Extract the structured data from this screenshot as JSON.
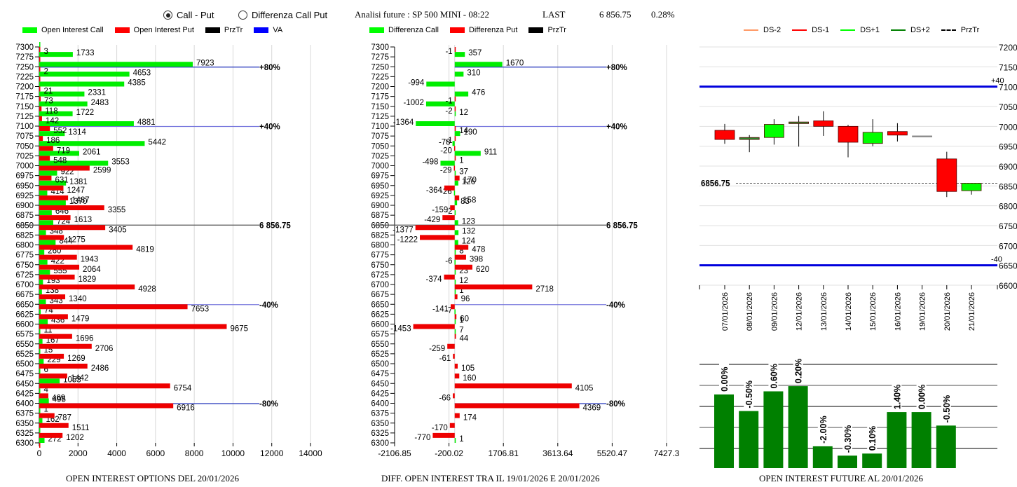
{
  "header": {
    "radio_options": [
      {
        "label": "Call - Put",
        "selected": true
      },
      {
        "label": "Differenza Call Put",
        "selected": false
      }
    ],
    "title": "Analisi future : SP 500 MINI - 08:22",
    "last_label": "LAST",
    "last_value": "6 856.75",
    "change": "0.28%"
  },
  "colors": {
    "call": "#00ff00",
    "put": "#ff0000",
    "przTr": "#000000",
    "va": "#0000ff",
    "ds_minus2": "#ff9966",
    "ds_minus1": "#ff0000",
    "ds_plus1": "#00ff00",
    "ds_plus2": "#008000",
    "future_bar": "#008000"
  },
  "chart_data": [
    {
      "type": "bar",
      "orientation": "horizontal",
      "title": "OPEN INTEREST OPTIONS DEL 20/01/2026",
      "legend": [
        "Open Interest Call",
        "Open Interest Put",
        "PrzTr",
        "VA"
      ],
      "legend_position": "top",
      "categories": [
        7300,
        7275,
        7250,
        7225,
        7200,
        7175,
        7150,
        7125,
        7100,
        7075,
        7050,
        7025,
        7000,
        6975,
        6950,
        6925,
        6900,
        6875,
        6850,
        6825,
        6800,
        6775,
        6750,
        6725,
        6700,
        6675,
        6650,
        6625,
        6600,
        6575,
        6550,
        6525,
        6500,
        6475,
        6450,
        6425,
        6400,
        6375,
        6350,
        6325,
        6300
      ],
      "series": [
        {
          "name": "Open Interest Call",
          "values": [
            0,
            1733,
            7923,
            4653,
            4385,
            2331,
            2483,
            1722,
            4881,
            1314,
            5442,
            2061,
            3553,
            922,
            1381,
            414,
            1370,
            646,
            724,
            348,
            844,
            260,
            422,
            555,
            193,
            138,
            343,
            74,
            436,
            11,
            167,
            15,
            229,
            6,
            1053,
            4,
            495,
            1,
            162,
            0,
            272
          ]
        },
        {
          "name": "Open Interest Put",
          "values": [
            3,
            0,
            2,
            0,
            21,
            73,
            118,
            142,
            552,
            186,
            719,
            548,
            2599,
            631,
            1247,
            1487,
            3355,
            1613,
            3405,
            1275,
            4819,
            1943,
            2064,
            1829,
            4928,
            1340,
            7653,
            1479,
            9675,
            1696,
            2706,
            1269,
            2486,
            1442,
            6754,
            469,
            6916,
            787,
            1511,
            1202,
            0
          ]
        }
      ],
      "xlim": [
        0,
        14000
      ],
      "xticks": [
        "0",
        "2000",
        "4000",
        "6000",
        "8000",
        "10000",
        "12000",
        "14000"
      ],
      "grid": true,
      "reference_lines": [
        {
          "strike": 7250,
          "label": "+80%",
          "type": "VA"
        },
        {
          "strike": 7100,
          "label": "+40%",
          "type": "VA"
        },
        {
          "strike": 6850,
          "label": "6 856.75",
          "type": "PrzTr"
        },
        {
          "strike": 6650,
          "label": "-40%",
          "type": "VA"
        },
        {
          "strike": 6400,
          "label": "-80%",
          "type": "VA"
        }
      ]
    },
    {
      "type": "bar",
      "orientation": "horizontal",
      "title": "DIFF. OPEN INTEREST TRA IL 19/01/2026 E 20/01/2026",
      "legend": [
        "Differenza Call",
        "Differenza Put",
        "PrzTr"
      ],
      "legend_position": "top",
      "categories": [
        7300,
        7275,
        7250,
        7225,
        7200,
        7175,
        7150,
        7125,
        7100,
        7075,
        7050,
        7025,
        7000,
        6975,
        6950,
        6925,
        6900,
        6875,
        6850,
        6825,
        6800,
        6775,
        6750,
        6725,
        6700,
        6675,
        6650,
        6625,
        6600,
        6575,
        6550,
        6525,
        6500,
        6475,
        6450,
        6425,
        6400,
        6375,
        6350,
        6325,
        6300
      ],
      "series": [
        {
          "name": "Differenza Call",
          "values": [
            null,
            357,
            1670,
            310,
            -994,
            476,
            -1002,
            12,
            -1364,
            190,
            -78,
            911,
            -498,
            37,
            126,
            -26,
            83,
            -2,
            123,
            132,
            124,
            8,
            -6,
            23,
            12,
            1,
            null,
            -7,
            1,
            7,
            null,
            null,
            null,
            null,
            null,
            null,
            null,
            null,
            null,
            null,
            1
          ]
        },
        {
          "name": "Differenza Put",
          "values": [
            -1,
            null,
            null,
            null,
            null,
            -1,
            -2,
            null,
            14,
            -1,
            -20,
            1,
            -29,
            170,
            -364,
            158,
            -159,
            -429,
            -1377,
            -1222,
            478,
            398,
            620,
            -374,
            2718,
            96,
            -141,
            60,
            -1453,
            44,
            -259,
            -61,
            105,
            160,
            4105,
            -66,
            4369,
            174,
            -170,
            -770,
            null
          ]
        }
      ],
      "xlim": [
        -2106.85,
        7427.3
      ],
      "xticks": [
        "-2106.85",
        "-200.02",
        "1706.81",
        "3613.64",
        "5520.47",
        "7427.3"
      ],
      "grid": true,
      "reference_lines": [
        {
          "strike": 7250,
          "label": "+80%",
          "type": "VA"
        },
        {
          "strike": 7100,
          "label": "+40%",
          "type": "VA"
        },
        {
          "strike": 6850,
          "label": "6 856.75",
          "type": "PrzTr"
        },
        {
          "strike": 6650,
          "label": "-40%",
          "type": "VA"
        },
        {
          "strike": 6400,
          "label": "-80%",
          "type": "VA"
        }
      ]
    },
    {
      "type": "candlestick",
      "legend": [
        "DS-2",
        "DS-1",
        "DS+1",
        "DS+2",
        "PrzTr"
      ],
      "legend_position": "top",
      "categories": [
        "07/01/2026",
        "08/01/2026",
        "09/01/2026",
        "12/01/2026",
        "13/01/2026",
        "14/01/2026",
        "15/01/2026",
        "16/01/2026",
        "19/01/2026",
        "20/01/2026",
        "21/01/2026"
      ],
      "candles": [
        {
          "open": 6990,
          "close": 6967,
          "high": 7006,
          "low": 6956,
          "color": "red"
        },
        {
          "open": 6967,
          "close": 6972,
          "high": 6978,
          "low": 6935,
          "color": "darkgreen"
        },
        {
          "open": 6972,
          "close": 7005,
          "high": 7018,
          "low": 6954,
          "color": "green"
        },
        {
          "open": 7007,
          "close": 7011,
          "high": 7026,
          "low": 6949,
          "color": "darkgreen"
        },
        {
          "open": 7014,
          "close": 7000,
          "high": 7038,
          "low": 6976,
          "color": "red"
        },
        {
          "open": 7000,
          "close": 6960,
          "high": 7004,
          "low": 6922,
          "color": "red"
        },
        {
          "open": 6957,
          "close": 6985,
          "high": 7018,
          "low": 6950,
          "color": "green"
        },
        {
          "open": 6987,
          "close": 6978,
          "high": 7008,
          "low": 6962,
          "color": "red"
        },
        {
          "open": 6976,
          "close": 6976,
          "high": 6976,
          "low": 6976,
          "color": "gray"
        },
        {
          "open": 6918,
          "close": 6836,
          "high": 6936,
          "low": 6822,
          "color": "red"
        },
        {
          "open": 6838,
          "close": 6856.75,
          "high": 6856.75,
          "low": 6828,
          "color": "green"
        }
      ],
      "ylim": [
        6600,
        7200
      ],
      "yticks": [
        "7200",
        "7150",
        "7100",
        "7050",
        "7000",
        "6950",
        "6900",
        "6850",
        "6800",
        "6750",
        "6700",
        "6650",
        "6600"
      ],
      "reference_lines": [
        {
          "value": 7100,
          "label": "+40",
          "type": "band"
        },
        {
          "value": 6650,
          "label": "-40",
          "type": "band"
        },
        {
          "value": 6856.75,
          "label": "6856.75",
          "type": "PrzTr"
        }
      ],
      "grid": true
    },
    {
      "type": "bar",
      "title": "OPEN INTEREST FUTURE AL 20/01/2026",
      "categories": [
        "07/01/2026",
        "08/01/2026",
        "09/01/2026",
        "12/01/2026",
        "13/01/2026",
        "14/01/2026",
        "15/01/2026",
        "16/01/2026",
        "19/01/2026",
        "20/01/2026"
      ],
      "values": [
        0.71,
        0.55,
        0.74,
        0.79,
        0.21,
        0.12,
        0.14,
        0.54,
        0.54,
        0.41
      ],
      "value_note": "relative bar heights (open interest, fraction of chart height)",
      "data_labels": [
        "0.00%",
        "-0.50%",
        "0.60%",
        "0.20%",
        "-2.00%",
        "-0.30%",
        "0.10%",
        "1.40%",
        "0.00%",
        "-0.50%"
      ],
      "grid": true
    }
  ]
}
